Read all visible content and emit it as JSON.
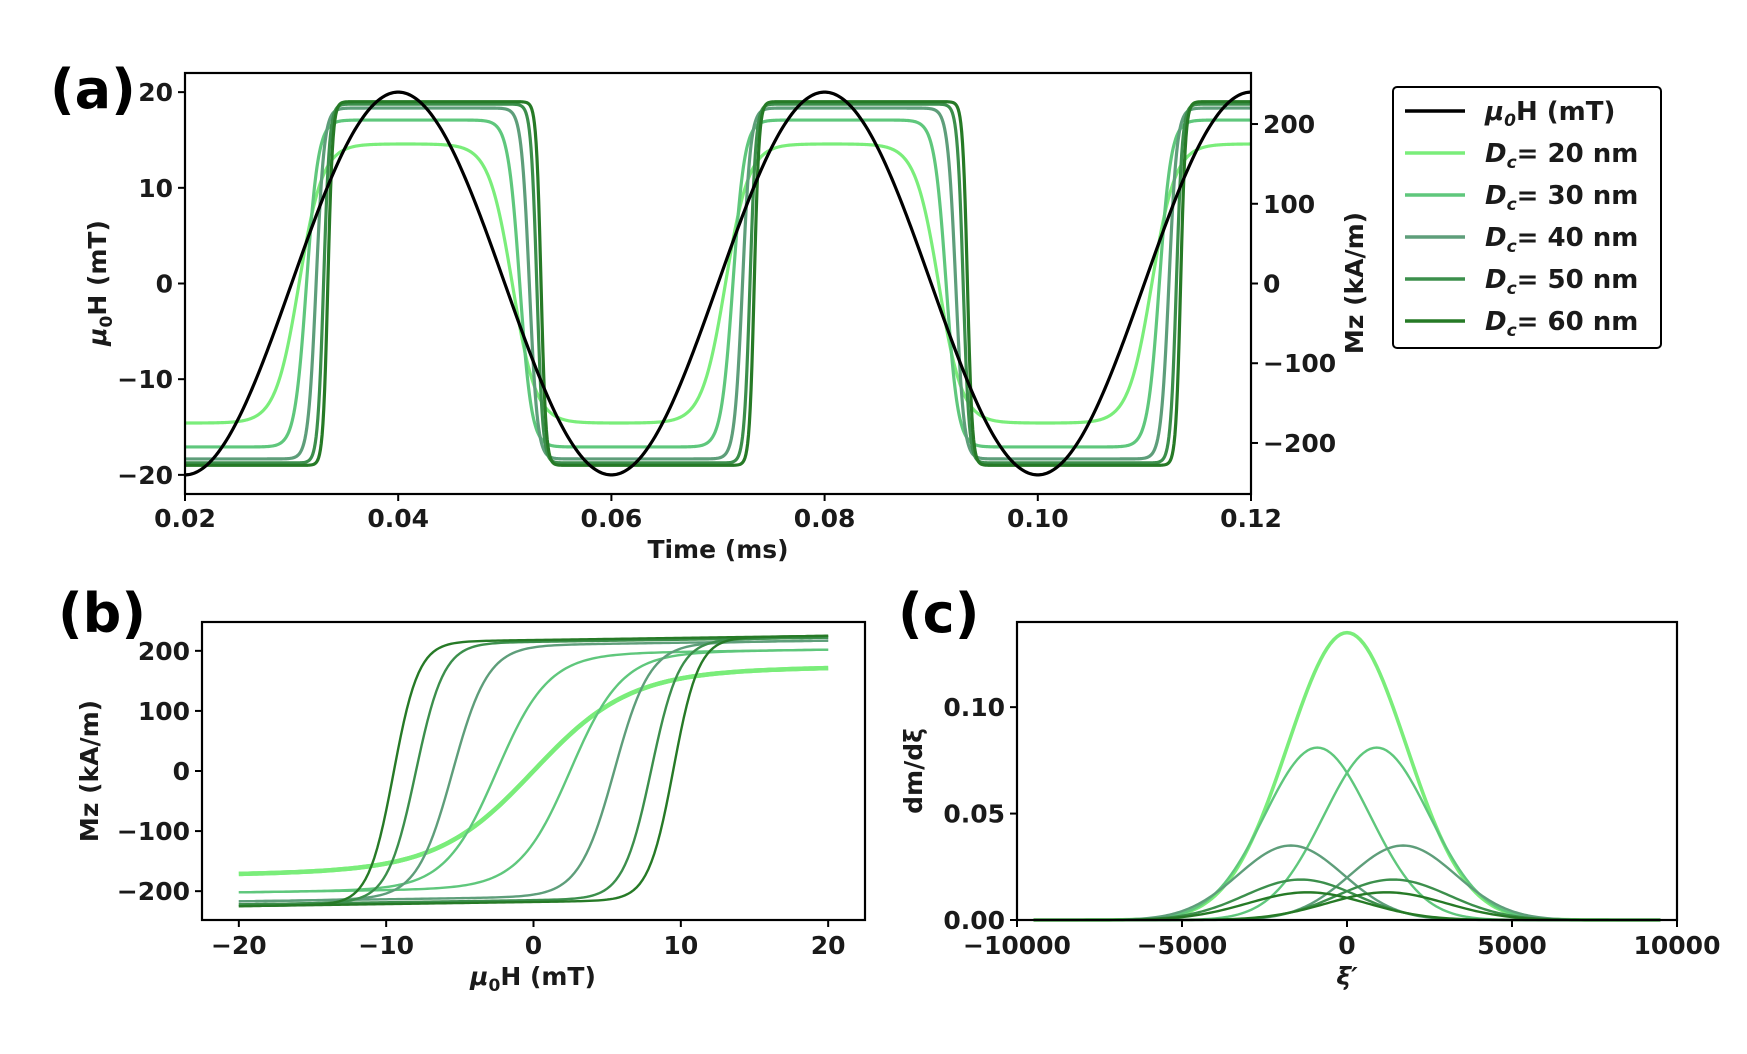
{
  "colors": {
    "field": "#000000",
    "Dc20": "#7aed7a",
    "Dc30": "#5fc77c",
    "Dc40": "#5e9e7a",
    "Dc50": "#3c8f4c",
    "Dc60": "#267a26"
  },
  "chart_data": [
    {
      "panel": "(a)",
      "type": "line",
      "xlabel": "Time (ms)",
      "ylabel_left": "μ0H (mT)",
      "ylabel_right": "Mz (kA/m)",
      "xlim": [
        0.02,
        0.12
      ],
      "ylim_left": [
        -22,
        22
      ],
      "ylim_right": [
        -264,
        264
      ],
      "xticks": [
        "0.02",
        "0.04",
        "0.06",
        "0.08",
        "0.10",
        "0.12"
      ],
      "yticks_left": [
        "−20",
        "−10",
        "0",
        "10",
        "20"
      ],
      "yticks_right": [
        "−200",
        "−100",
        "0",
        "100",
        "200"
      ],
      "field": {
        "name": "μ0H (mT)",
        "amplitude_mT": 20,
        "period_ms": 0.04,
        "peak_times_ms": [
          0.04,
          0.08,
          0.12
        ],
        "min_times_ms": [
          0.02,
          0.06,
          0.1
        ]
      },
      "series": [
        {
          "name": "Dc= 20 nm",
          "Ms_kA_m": 175,
          "switch_delay_ms": 0.0007,
          "switch_width_ms": 0.0022
        },
        {
          "name": "Dc= 30 nm",
          "Ms_kA_m": 205,
          "switch_delay_ms": 0.0014,
          "switch_width_ms": 0.0011
        },
        {
          "name": "Dc= 40 nm",
          "Ms_kA_m": 220,
          "switch_delay_ms": 0.0023,
          "switch_width_ms": 0.00075
        },
        {
          "name": "Dc= 50 nm",
          "Ms_kA_m": 225,
          "switch_delay_ms": 0.003,
          "switch_width_ms": 0.00055
        },
        {
          "name": "Dc= 60 nm",
          "Ms_kA_m": 228,
          "switch_delay_ms": 0.0034,
          "switch_width_ms": 0.00045
        }
      ],
      "legend": {
        "placement": "outside-right",
        "entries": [
          {
            "key": "field",
            "prefix": "μ",
            "sub": "0",
            "suffix": "H (mT)"
          },
          {
            "key": "Dc20",
            "prefix": "D",
            "sub": "c",
            "suffix": "= 20 nm"
          },
          {
            "key": "Dc30",
            "prefix": "D",
            "sub": "c",
            "suffix": "= 30 nm"
          },
          {
            "key": "Dc40",
            "prefix": "D",
            "sub": "c",
            "suffix": "= 40 nm"
          },
          {
            "key": "Dc50",
            "prefix": "D",
            "sub": "c",
            "suffix": "= 50 nm"
          },
          {
            "key": "Dc60",
            "prefix": "D",
            "sub": "c",
            "suffix": "= 60 nm"
          }
        ]
      }
    },
    {
      "panel": "(b)",
      "type": "line",
      "xlabel": "μ0H (mT)",
      "ylabel": "Mz (kA/m)",
      "xlim": [
        -22.5,
        22.5
      ],
      "ylim": [
        -248,
        248
      ],
      "xticks": [
        "−20",
        "−10",
        "0",
        "10",
        "20"
      ],
      "yticks": [
        "−200",
        "−100",
        "0",
        "100",
        "200"
      ],
      "series": [
        {
          "name": "Dc= 20 nm",
          "Ms_kA_m": 175,
          "coercive_field_mT": 0,
          "width_mT": 6.5
        },
        {
          "name": "Dc= 30 nm",
          "Ms_kA_m": 205,
          "coercive_field_mT": 2.5,
          "width_mT": 3.5
        },
        {
          "name": "Dc= 40 nm",
          "Ms_kA_m": 220,
          "coercive_field_mT": 5.5,
          "width_mT": 2.4
        },
        {
          "name": "Dc= 50 nm",
          "Ms_kA_m": 225,
          "coercive_field_mT": 8.0,
          "width_mT": 1.9
        },
        {
          "name": "Dc= 60 nm",
          "Ms_kA_m": 228,
          "coercive_field_mT": 9.5,
          "width_mT": 1.7
        }
      ]
    },
    {
      "panel": "(c)",
      "type": "line",
      "xlabel": "ξ′",
      "ylabel": "dm/dξ",
      "xlim": [
        -10000,
        10000
      ],
      "ylim": [
        0,
        0.14
      ],
      "xticks": [
        "−10000",
        "−5000",
        "0",
        "5000",
        "10000"
      ],
      "yticks": [
        "0.00",
        "0.05",
        "0.10"
      ],
      "series": [
        {
          "name": "Dc= 20 nm",
          "peaks": [
            {
              "center": 0,
              "height": 0.135,
              "sigma": 1800
            }
          ]
        },
        {
          "name": "Dc= 30 nm",
          "peaks": [
            {
              "center": -900,
              "height": 0.081,
              "sigma": 1600
            },
            {
              "center": 900,
              "height": 0.081,
              "sigma": 1600
            }
          ]
        },
        {
          "name": "Dc= 40 nm",
          "peaks": [
            {
              "center": -1700,
              "height": 0.035,
              "sigma": 1600
            },
            {
              "center": 1700,
              "height": 0.035,
              "sigma": 1600
            }
          ]
        },
        {
          "name": "Dc= 50 nm",
          "peaks": [
            {
              "center": -1400,
              "height": 0.019,
              "sigma": 1700
            },
            {
              "center": 1400,
              "height": 0.019,
              "sigma": 1700
            }
          ]
        },
        {
          "name": "Dc= 60 nm",
          "peaks": [
            {
              "center": -1200,
              "height": 0.013,
              "sigma": 1800
            },
            {
              "center": 1200,
              "height": 0.013,
              "sigma": 1800
            }
          ]
        }
      ]
    }
  ]
}
